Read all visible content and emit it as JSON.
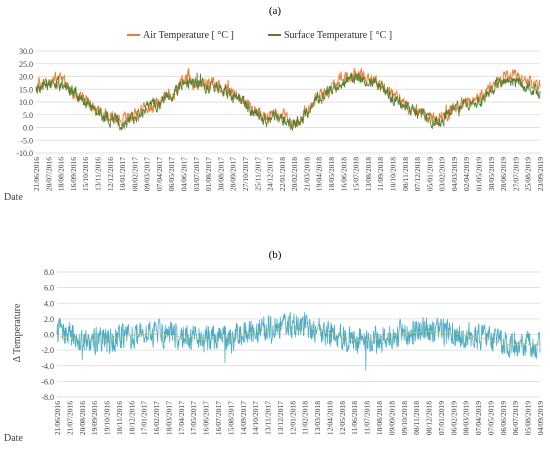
{
  "chart_data": [
    {
      "type": "line",
      "panel_label": "(a)",
      "title": "",
      "xlabel": "Date",
      "ylabel": "",
      "ylim": [
        -10,
        30
      ],
      "yticks": [
        "30.0",
        "25.0",
        "20.0",
        "15.0",
        "10.0",
        "5.0",
        "0.0",
        "-5.0",
        "-10.0"
      ],
      "grid": true,
      "legend_position": "top",
      "x_start": "21/06/2016",
      "x_end": "23/09/2019",
      "x_tick_labels": [
        "21/06/2016",
        "20/07/2016",
        "18/08/2016",
        "16/09/2016",
        "15/10/2016",
        "13/11/2016",
        "12/12/2016",
        "10/01/2017",
        "08/02/2017",
        "09/03/2017",
        "07/04/2017",
        "06/05/2017",
        "04/06/2017",
        "03/07/2017",
        "01/08/2017",
        "30/08/2017",
        "28/09/2017",
        "27/10/2017",
        "25/11/2017",
        "24/12/2017",
        "22/01/2018",
        "20/02/2018",
        "21/03/2018",
        "19/04/2018",
        "18/05/2018",
        "16/06/2018",
        "15/07/2018",
        "13/08/2018",
        "11/09/2018",
        "10/10/2018",
        "08/11/2018",
        "07/12/2018",
        "05/01/2019",
        "03/02/2019",
        "04/03/2019",
        "02/04/2019",
        "01/05/2019",
        "30/05/2019",
        "28/06/2019",
        "27/07/2019",
        "25/08/2019",
        "23/09/2019"
      ],
      "series": [
        {
          "name": "Air Temperature [ °C ]",
          "color": "#ed7d31",
          "monthly": [
            {
              "x": "2016-06-21",
              "y": 16
            },
            {
              "x": "2016-07-15",
              "y": 18
            },
            {
              "x": "2016-08-15",
              "y": 19
            },
            {
              "x": "2016-09-15",
              "y": 14
            },
            {
              "x": "2016-10-15",
              "y": 10
            },
            {
              "x": "2016-11-15",
              "y": 6
            },
            {
              "x": "2016-12-15",
              "y": 4
            },
            {
              "x": "2017-01-15",
              "y": 3
            },
            {
              "x": "2017-02-15",
              "y": 6
            },
            {
              "x": "2017-03-15",
              "y": 8
            },
            {
              "x": "2017-04-15",
              "y": 11
            },
            {
              "x": "2017-05-15",
              "y": 14
            },
            {
              "x": "2017-06-15",
              "y": 19
            },
            {
              "x": "2017-07-15",
              "y": 18
            },
            {
              "x": "2017-08-15",
              "y": 17
            },
            {
              "x": "2017-09-15",
              "y": 14
            },
            {
              "x": "2017-10-15",
              "y": 12
            },
            {
              "x": "2017-11-15",
              "y": 7
            },
            {
              "x": "2017-12-15",
              "y": 4
            },
            {
              "x": "2018-01-15",
              "y": 5
            },
            {
              "x": "2018-02-15",
              "y": 2
            },
            {
              "x": "2018-03-15",
              "y": 5
            },
            {
              "x": "2018-04-15",
              "y": 12
            },
            {
              "x": "2018-05-15",
              "y": 15
            },
            {
              "x": "2018-06-15",
              "y": 19
            },
            {
              "x": "2018-07-15",
              "y": 21
            },
            {
              "x": "2018-08-15",
              "y": 20
            },
            {
              "x": "2018-09-15",
              "y": 16
            },
            {
              "x": "2018-10-15",
              "y": 12
            },
            {
              "x": "2018-11-15",
              "y": 9
            },
            {
              "x": "2018-12-15",
              "y": 6
            },
            {
              "x": "2019-01-15",
              "y": 3
            },
            {
              "x": "2019-02-15",
              "y": 5
            },
            {
              "x": "2019-03-15",
              "y": 9
            },
            {
              "x": "2019-04-15",
              "y": 10
            },
            {
              "x": "2019-05-15",
              "y": 13
            },
            {
              "x": "2019-06-15",
              "y": 18
            },
            {
              "x": "2019-07-15",
              "y": 20
            },
            {
              "x": "2019-08-15",
              "y": 18
            },
            {
              "x": "2019-09-23",
              "y": 15
            }
          ]
        },
        {
          "name": "Surface Temperature [ °C ]",
          "color": "#548235",
          "monthly": [
            {
              "x": "2016-06-21",
              "y": 15
            },
            {
              "x": "2016-07-15",
              "y": 17
            },
            {
              "x": "2016-08-15",
              "y": 17
            },
            {
              "x": "2016-09-15",
              "y": 14
            },
            {
              "x": "2016-10-15",
              "y": 10
            },
            {
              "x": "2016-11-15",
              "y": 6
            },
            {
              "x": "2016-12-15",
              "y": 3
            },
            {
              "x": "2017-01-15",
              "y": 2
            },
            {
              "x": "2017-02-15",
              "y": 5
            },
            {
              "x": "2017-03-15",
              "y": 8
            },
            {
              "x": "2017-04-15",
              "y": 10
            },
            {
              "x": "2017-05-15",
              "y": 14
            },
            {
              "x": "2017-06-15",
              "y": 17
            },
            {
              "x": "2017-07-15",
              "y": 17
            },
            {
              "x": "2017-08-15",
              "y": 16
            },
            {
              "x": "2017-09-15",
              "y": 14
            },
            {
              "x": "2017-10-15",
              "y": 11
            },
            {
              "x": "2017-11-15",
              "y": 6
            },
            {
              "x": "2017-12-15",
              "y": 3
            },
            {
              "x": "2018-01-15",
              "y": 4
            },
            {
              "x": "2018-02-15",
              "y": 1
            },
            {
              "x": "2018-03-15",
              "y": 4
            },
            {
              "x": "2018-04-15",
              "y": 11
            },
            {
              "x": "2018-05-15",
              "y": 14
            },
            {
              "x": "2018-06-15",
              "y": 18
            },
            {
              "x": "2018-07-15",
              "y": 20
            },
            {
              "x": "2018-08-15",
              "y": 19
            },
            {
              "x": "2018-09-15",
              "y": 15
            },
            {
              "x": "2018-10-15",
              "y": 11
            },
            {
              "x": "2018-11-15",
              "y": 8
            },
            {
              "x": "2018-12-15",
              "y": 5
            },
            {
              "x": "2019-01-15",
              "y": 2
            },
            {
              "x": "2019-02-15",
              "y": 4
            },
            {
              "x": "2019-03-15",
              "y": 8
            },
            {
              "x": "2019-04-15",
              "y": 9
            },
            {
              "x": "2019-05-15",
              "y": 12
            },
            {
              "x": "2019-06-15",
              "y": 17
            },
            {
              "x": "2019-07-15",
              "y": 18
            },
            {
              "x": "2019-08-15",
              "y": 17
            },
            {
              "x": "2019-09-23",
              "y": 14
            }
          ]
        }
      ]
    },
    {
      "type": "line",
      "panel_label": "(b)",
      "title": "",
      "xlabel": "Date",
      "ylabel": "Δ Temperature",
      "ylim": [
        -8,
        8
      ],
      "yticks": [
        "8.0",
        "6.0",
        "4.0",
        "2.0",
        "0.0",
        "-2.0",
        "-4.0",
        "-6.0",
        "-8.0"
      ],
      "grid": true,
      "x_start": "21/06/2016",
      "x_end": "04/09/2019",
      "x_tick_labels": [
        "21/06/2016",
        "21/07/2016",
        "20/08/2016",
        "19/09/2016",
        "19/10/2016",
        "18/11/2016",
        "18/12/2016",
        "17/01/2017",
        "16/02/2017",
        "18/03/2017",
        "17/04/2017",
        "17/05/2017",
        "16/06/2017",
        "16/07/2017",
        "15/08/2017",
        "14/09/2017",
        "14/10/2017",
        "13/11/2017",
        "13/12/2017",
        "12/01/2018",
        "11/02/2018",
        "13/03/2018",
        "12/04/2018",
        "12/05/2018",
        "11/06/2018",
        "11/07/2018",
        "10/08/2018",
        "09/09/2018",
        "09/10/2018",
        "08/11/2018",
        "08/12/2018",
        "07/01/2019",
        "06/02/2019",
        "08/03/2019",
        "07/04/2019",
        "07/05/2019",
        "06/06/2019",
        "06/07/2019",
        "05/08/2019",
        "04/09/2019"
      ],
      "series": [
        {
          "name": "",
          "color": "#4bacc6",
          "monthly": [
            {
              "x": "2016-06-21",
              "y": 0.5
            },
            {
              "x": "2016-08-15",
              "y": -0.5
            },
            {
              "x": "2016-10-15",
              "y": -0.8
            },
            {
              "x": "2016-12-15",
              "y": -0.3
            },
            {
              "x": "2017-02-15",
              "y": 0.2
            },
            {
              "x": "2017-04-15",
              "y": -0.2
            },
            {
              "x": "2017-06-15",
              "y": -0.6
            },
            {
              "x": "2017-08-15",
              "y": -0.3
            },
            {
              "x": "2017-10-15",
              "y": 0.5
            },
            {
              "x": "2017-12-15",
              "y": 1.0
            },
            {
              "x": "2018-02-15",
              "y": 1.2
            },
            {
              "x": "2018-04-15",
              "y": 0.0
            },
            {
              "x": "2018-06-15",
              "y": -0.8
            },
            {
              "x": "2018-08-15",
              "y": -0.5
            },
            {
              "x": "2018-10-15",
              "y": 0.3
            },
            {
              "x": "2018-12-15",
              "y": 0.5
            },
            {
              "x": "2019-02-15",
              "y": 0.0
            },
            {
              "x": "2019-04-15",
              "y": -0.4
            },
            {
              "x": "2019-06-15",
              "y": -1.2
            },
            {
              "x": "2019-09-04",
              "y": -1.2
            }
          ]
        },
        {
          "name": "",
          "color": "#e3c04a",
          "monthly": [
            {
              "x": "2016-06-21",
              "y": -0.2
            },
            {
              "x": "2016-08-15",
              "y": -0.6
            },
            {
              "x": "2016-10-15",
              "y": -0.7
            },
            {
              "x": "2016-12-15",
              "y": -0.2
            },
            {
              "x": "2017-02-15",
              "y": 0.1
            },
            {
              "x": "2017-04-15",
              "y": -0.3
            },
            {
              "x": "2017-06-15",
              "y": -0.7
            },
            {
              "x": "2017-08-15",
              "y": -0.4
            },
            {
              "x": "2017-10-15",
              "y": 0.3
            },
            {
              "x": "2017-12-15",
              "y": 0.8
            },
            {
              "x": "2018-02-15",
              "y": 1.0
            },
            {
              "x": "2018-04-15",
              "y": 0.1
            },
            {
              "x": "2018-06-15",
              "y": -0.8
            },
            {
              "x": "2018-08-15",
              "y": -0.5
            },
            {
              "x": "2018-10-15",
              "y": 0.2
            },
            {
              "x": "2018-12-15",
              "y": 0.4
            },
            {
              "x": "2019-02-15",
              "y": 0.1
            },
            {
              "x": "2019-04-15",
              "y": -0.5
            },
            {
              "x": "2019-06-15",
              "y": -1.3
            },
            {
              "x": "2019-09-04",
              "y": -1.3
            }
          ]
        }
      ]
    }
  ]
}
